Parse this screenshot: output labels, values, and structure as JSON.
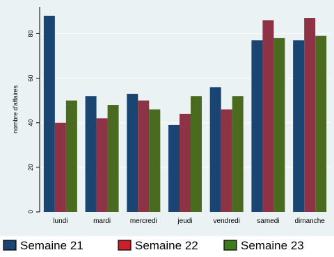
{
  "chart_data": {
    "type": "bar",
    "categories": [
      "lundi",
      "mardi",
      "mercredi",
      "jeudi",
      "vendredi",
      "samedi",
      "dimanche"
    ],
    "series": [
      {
        "name": "Semaine 21",
        "color": "#1a4472",
        "values": [
          88,
          52,
          53,
          39,
          56,
          77,
          77
        ]
      },
      {
        "name": "Semaine 22",
        "color": "#8e3245",
        "values": [
          40,
          42,
          50,
          44,
          46,
          86,
          87
        ]
      },
      {
        "name": "Semaine 23",
        "color": "#4a6b1f",
        "values": [
          50,
          48,
          46,
          52,
          52,
          78,
          79
        ]
      }
    ],
    "legend_swatch_colors": [
      "#1a4472",
      "#cc1f2e",
      "#3e7a1e"
    ],
    "ylabel": "nombre d'affaires",
    "ylim": [
      0,
      92
    ],
    "yticks": [
      0,
      20,
      40,
      60,
      80
    ],
    "grid": "horizontal",
    "legend_position": "bottom",
    "colors": {
      "background": "#eaf2f3",
      "grid": "#ffffff"
    }
  }
}
